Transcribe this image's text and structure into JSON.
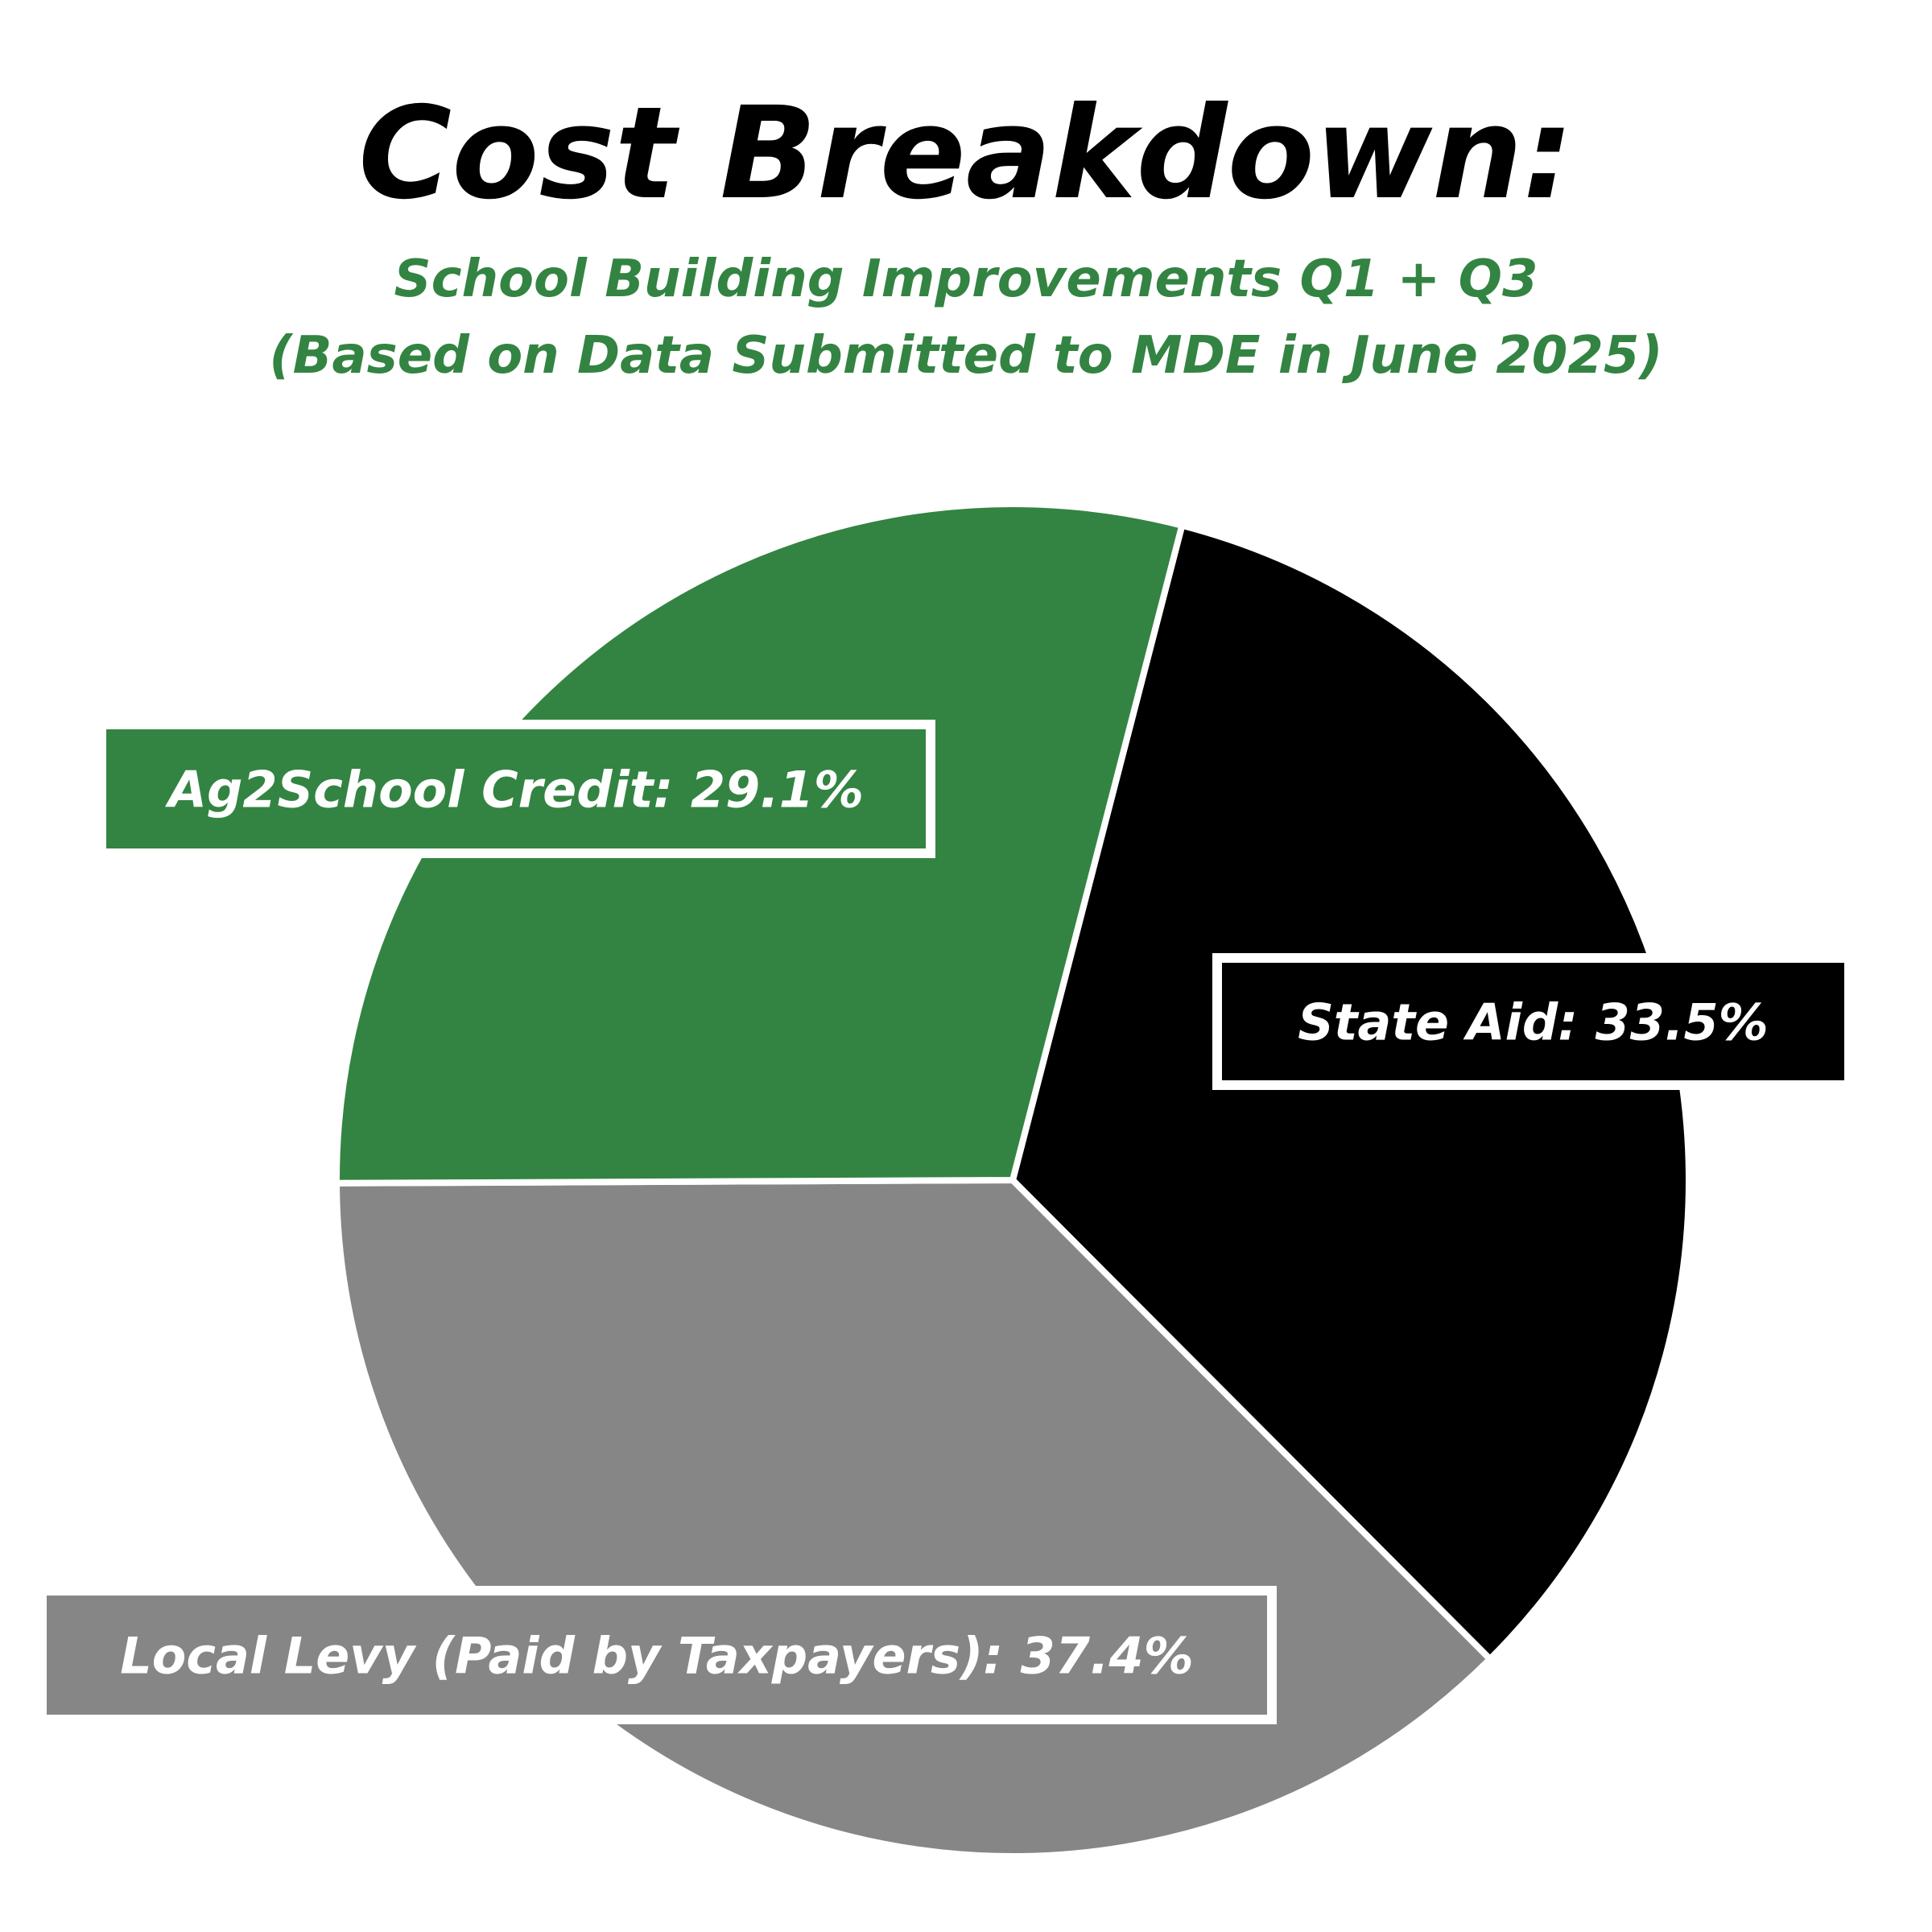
{
  "chart_data": {
    "type": "pie",
    "title": "Cost Breakdown:",
    "subtitle": "School Building Improvements Q1 + Q3",
    "subtitle2": "(Based on Data Submitted to MDE in June 2025)",
    "slices": [
      {
        "label": "State Aid: 33.5%",
        "value": 33.5,
        "color": "#000000",
        "text_color": "#ffffff"
      },
      {
        "label": "Local Levy (Paid by Taxpayers): 37.4%",
        "value": 37.4,
        "color": "#868686",
        "text_color": "#ffffff"
      },
      {
        "label": "Ag2School Credit: 29.1%",
        "value": 29.1,
        "color": "#338442",
        "text_color": "#ffffff"
      }
    ],
    "title_color": "#000000",
    "subtitle_color": "#338442",
    "start_angle_deg": -75.5,
    "direction": "clockwise",
    "slice_border_color": "#ffffff"
  }
}
